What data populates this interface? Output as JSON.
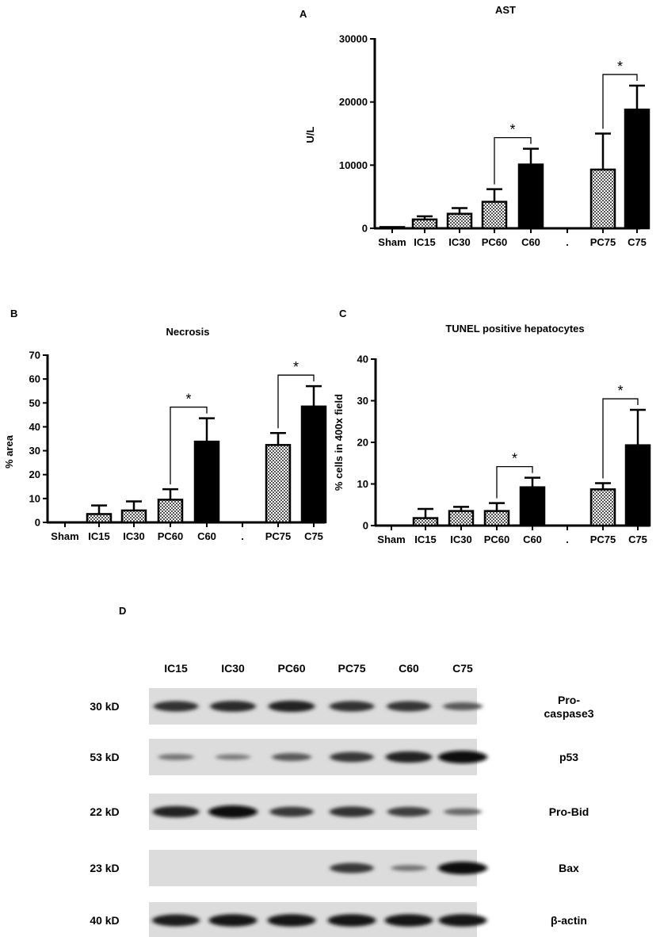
{
  "chart_data": [
    {
      "panel": "A",
      "type": "bar",
      "title": "AST",
      "ylabel": "U/L",
      "ylim": [
        0,
        30000
      ],
      "yticks": [
        "0",
        "10000",
        "20000",
        "30000"
      ],
      "categories": [
        "Sham",
        "IC15",
        "IC30",
        "PC60",
        "C60",
        ".",
        "PC75",
        "C75"
      ],
      "values": [
        200,
        1400,
        2300,
        4200,
        10100,
        0,
        9300,
        18800
      ],
      "errors": [
        0,
        500,
        900,
        2000,
        2500,
        0,
        5700,
        3800
      ],
      "fill": [
        "black",
        "check",
        "check",
        "check",
        "black",
        "none",
        "check",
        "black"
      ],
      "significance": [
        {
          "from": "PC60",
          "to": "C60",
          "label": "*"
        },
        {
          "from": "PC75",
          "to": "C75",
          "label": "*"
        }
      ]
    },
    {
      "panel": "B",
      "type": "bar",
      "title": "Necrosis",
      "ylabel": "% area",
      "ylim": [
        0,
        70
      ],
      "yticks": [
        "0",
        "10",
        "20",
        "30",
        "40",
        "50",
        "60",
        "70"
      ],
      "categories": [
        "Sham",
        "IC15",
        "IC30",
        "PC60",
        "C60",
        ".",
        "PC75",
        "C75"
      ],
      "values": [
        0,
        3.5,
        5,
        9.5,
        33.8,
        0,
        32.4,
        48.5
      ],
      "errors": [
        0,
        3.6,
        3.8,
        4.4,
        9.8,
        0,
        5.0,
        8.5
      ],
      "fill": [
        "black",
        "check",
        "check",
        "check",
        "black",
        "none",
        "check",
        "black"
      ],
      "significance": [
        {
          "from": "PC60",
          "to": "C60",
          "label": "*"
        },
        {
          "from": "PC75",
          "to": "C75",
          "label": "*"
        }
      ]
    },
    {
      "panel": "C",
      "type": "bar",
      "title": "TUNEL positive hepatocytes",
      "ylabel": "% cells in 400x field",
      "ylim": [
        0,
        40
      ],
      "yticks": [
        "0",
        "10",
        "20",
        "30",
        "40"
      ],
      "categories": [
        "Sham",
        "IC15",
        "IC30",
        "PC60",
        "C60",
        ".",
        "PC75",
        "C75"
      ],
      "values": [
        0,
        1.8,
        3.5,
        3.5,
        9.2,
        0,
        8.7,
        19.3
      ],
      "errors": [
        0,
        2.2,
        1.0,
        1.9,
        2.3,
        0,
        1.5,
        8.5
      ],
      "fill": [
        "black",
        "check",
        "check",
        "check",
        "black",
        "none",
        "check",
        "black"
      ],
      "significance": [
        {
          "from": "PC60",
          "to": "C60",
          "label": "*"
        },
        {
          "from": "PC75",
          "to": "C75",
          "label": "*"
        }
      ]
    }
  ],
  "western_blot": {
    "panel": "D",
    "lanes": [
      "IC15",
      "IC30",
      "PC60",
      "PC75",
      "C60",
      "C75"
    ],
    "rows": [
      {
        "weight": "30 kD",
        "label_lines": [
          "Pro-",
          "caspase3"
        ],
        "intensity": [
          0.75,
          0.8,
          0.85,
          0.75,
          0.72,
          0.45
        ]
      },
      {
        "weight": "53 kD",
        "label_lines": [
          "p53"
        ],
        "intensity": [
          0.25,
          0.2,
          0.45,
          0.7,
          0.85,
          1.0
        ]
      },
      {
        "weight": "22 kD",
        "label_lines": [
          "Pro-Bid"
        ],
        "intensity": [
          0.85,
          1.0,
          0.7,
          0.75,
          0.65,
          0.35
        ]
      },
      {
        "weight": "23 kD",
        "label_lines": [
          "Bax"
        ],
        "intensity": [
          0,
          0,
          0,
          0.7,
          0.25,
          1.0
        ]
      },
      {
        "weight": "40 kD",
        "label_lines": [
          "β-actin"
        ],
        "intensity": [
          0.9,
          0.95,
          0.95,
          0.95,
          0.95,
          0.95
        ]
      }
    ]
  }
}
